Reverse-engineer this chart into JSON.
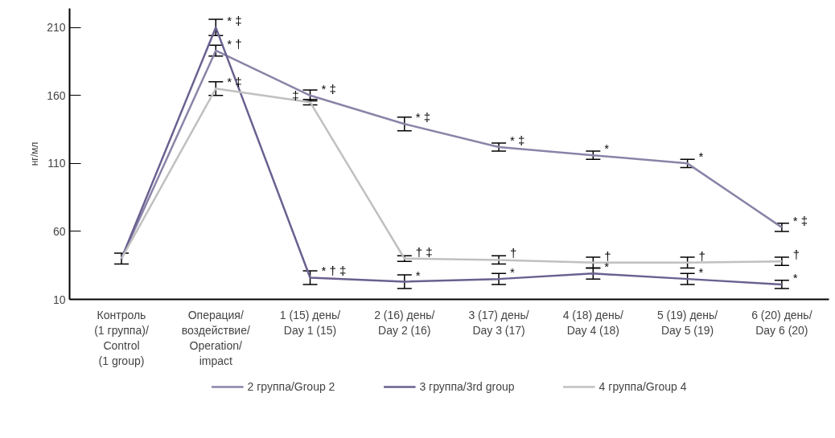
{
  "chart_data": {
    "type": "line",
    "ylabel": "нг/мл",
    "categories": [
      "Контроль\n(1 группа)/\nControl\n(1 group)",
      "Операция/\nвоздействие/\nOperation/\nimpact",
      "1 (15) день/\nDay 1 (15)",
      "2 (16) день/\nDay 2 (16)",
      "3 (17) день/\nDay 3 (17)",
      "4 (18) день/\nDay 4 (18)",
      "5 (19) день/\nDay 5 (19)",
      "6 (20) день/\nDay 6 (20)"
    ],
    "series": [
      {
        "name": "2 группа/Group 2",
        "color": "#8a84a8",
        "values": [
          40,
          193,
          160,
          139,
          122,
          116,
          110,
          63
        ],
        "errors": [
          4,
          4,
          4,
          5,
          3,
          3,
          3,
          3
        ]
      },
      {
        "name": "3 группа/3rd group",
        "color": "#6b6090",
        "values": [
          40,
          210,
          26,
          23,
          25,
          29,
          25,
          21
        ],
        "errors": [
          4,
          6,
          5,
          5,
          4,
          4,
          4,
          3
        ]
      },
      {
        "name": "4 группа/Group 4",
        "color": "#c0c0c0",
        "values": [
          40,
          165,
          155,
          40,
          39,
          37,
          37,
          38
        ],
        "errors": [
          4,
          5,
          2,
          2,
          3,
          4,
          4,
          3
        ]
      }
    ],
    "ylim": [
      10,
      224
    ],
    "yticks": [
      10,
      60,
      110,
      160,
      210
    ],
    "grid": false,
    "legend": "bottom",
    "marker": "none",
    "line_style": "solid",
    "annotations": [
      {
        "text": "* ‡",
        "x": "Операция/\nвоздействие/\nOperation/\nimpact",
        "y": 210
      },
      {
        "text": "* †",
        "x": "Операция/\nвоздействие/\nOperation/\nimpact",
        "y": 193
      },
      {
        "text": "* ‡",
        "x": "Операция/\nвоздействие/\nOperation/\nimpact",
        "y": 165
      },
      {
        "text": "* ‡",
        "x": "1 (15) день/\nDay 1 (15)",
        "y": 160
      },
      {
        "text": "‡",
        "x": "1 (15) день/\nDay 1 (15)",
        "y": 155
      },
      {
        "text": "* † ‡",
        "x": "1 (15) день/\nDay 1 (15)",
        "y": 26
      },
      {
        "text": "* ‡",
        "x": "2 (16) день/\nDay 2 (16)",
        "y": 139
      },
      {
        "text": "† ‡",
        "x": "2 (16) день/\nDay 2 (16)",
        "y": 40
      },
      {
        "text": "*",
        "x": "2 (16) день/\nDay 2 (16)",
        "y": 23
      },
      {
        "text": "* ‡",
        "x": "3 (17) день/\nDay 3 (17)",
        "y": 122
      },
      {
        "text": "†",
        "x": "3 (17) день/\nDay 3 (17)",
        "y": 39
      },
      {
        "text": "*",
        "x": "3 (17) день/\nDay 3 (17)",
        "y": 25
      },
      {
        "text": "*",
        "x": "4 (18) день/\nDay 4 (18)",
        "y": 116
      },
      {
        "text": "†",
        "x": "4 (18) день/\nDay 4 (18)",
        "y": 37
      },
      {
        "text": "*",
        "x": "4 (18) день/\nDay 4 (18)",
        "y": 29
      },
      {
        "text": "*",
        "x": "5 (19) день/\nDay 5 (19)",
        "y": 110
      },
      {
        "text": "†",
        "x": "5 (19) день/\nDay 5 (19)",
        "y": 37
      },
      {
        "text": "*",
        "x": "5 (19) день/\nDay 5 (19)",
        "y": 25
      },
      {
        "text": "* ‡",
        "x": "6 (20) день/\nDay 6 (20)",
        "y": 63
      },
      {
        "text": "†",
        "x": "6 (20) день/\nDay 6 (20)",
        "y": 38
      },
      {
        "text": "*",
        "x": "6 (20) день/\nDay 6 (20)",
        "y": 21
      }
    ]
  }
}
